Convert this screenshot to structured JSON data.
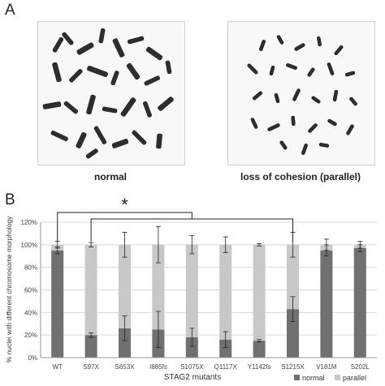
{
  "panel_a": {
    "letter": "A",
    "images": [
      {
        "caption": "normal"
      },
      {
        "caption": "loss of cohesion (parallel)"
      }
    ]
  },
  "panel_b": {
    "letter": "B"
  },
  "chart_data": {
    "type": "bar",
    "stacked": true,
    "xlabel": "STAG2 mutants",
    "ylabel": "% nuclei with different chromosome morphology",
    "ylim": [
      0,
      120
    ],
    "yticks": [
      "0%",
      "20%",
      "40%",
      "60%",
      "80%",
      "100%",
      "120%"
    ],
    "ytick_values": [
      0,
      20,
      40,
      60,
      80,
      100,
      120
    ],
    "grid": true,
    "legend_position": "bottom-right",
    "categories": [
      "WT",
      "S97X",
      "S653X",
      "I885fs",
      "S1075X",
      "Q1117X",
      "Y1142fs",
      "S1215X",
      "V181M",
      "S202L"
    ],
    "series": [
      {
        "name": "normal",
        "color": "#707070",
        "values": [
          95,
          20,
          26,
          25,
          18,
          16,
          15,
          43,
          95,
          97
        ],
        "errors": [
          3,
          2,
          11,
          16,
          8,
          7,
          1,
          11,
          5,
          3
        ]
      },
      {
        "name": "parallel",
        "color": "#c8c8c8",
        "values": [
          5,
          80,
          74,
          75,
          82,
          84,
          85,
          57,
          5,
          3
        ],
        "errors": [
          3,
          2,
          11,
          16,
          8,
          7,
          1,
          11,
          5,
          3
        ]
      }
    ],
    "annotation": {
      "text": "*",
      "bracket_from": "WT",
      "bracket_to": [
        "S97X",
        "S653X",
        "I885fs",
        "S1075X",
        "Q1117X",
        "Y1142fs",
        "S1215X"
      ]
    }
  }
}
